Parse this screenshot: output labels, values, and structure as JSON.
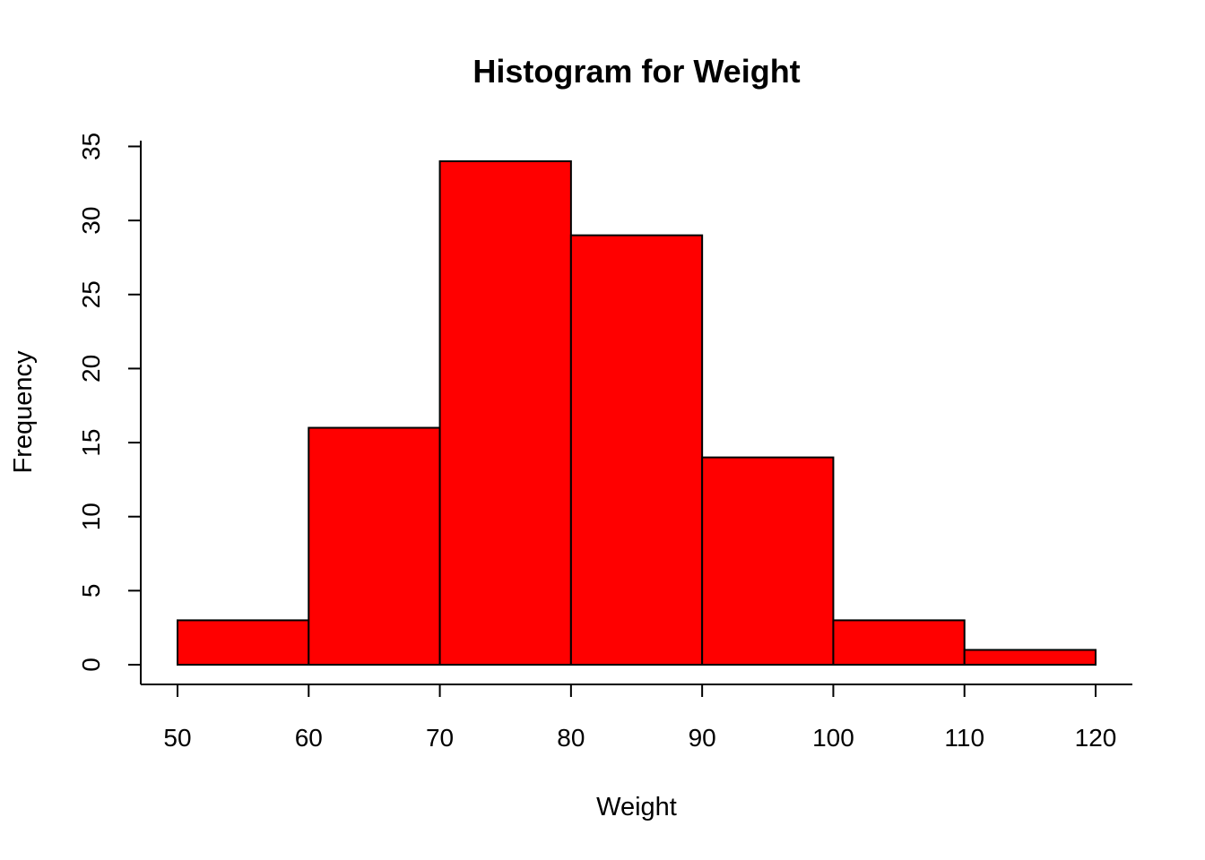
{
  "chart_data": {
    "type": "bar",
    "title": "Histogram for Weight",
    "xlabel": "Weight",
    "ylabel": "Frequency",
    "bin_edges": [
      50,
      60,
      70,
      80,
      90,
      100,
      110,
      120
    ],
    "values": [
      3,
      16,
      34,
      29,
      14,
      3,
      1
    ],
    "xlim": [
      50,
      120
    ],
    "ylim": [
      0,
      35
    ],
    "x_ticks": [
      50,
      60,
      70,
      80,
      90,
      100,
      110,
      120
    ],
    "y_ticks": [
      0,
      5,
      10,
      15,
      20,
      25,
      30,
      35
    ],
    "bar_color": "#ff0000",
    "border_color": "#000000",
    "grid": false,
    "legend": "none"
  }
}
